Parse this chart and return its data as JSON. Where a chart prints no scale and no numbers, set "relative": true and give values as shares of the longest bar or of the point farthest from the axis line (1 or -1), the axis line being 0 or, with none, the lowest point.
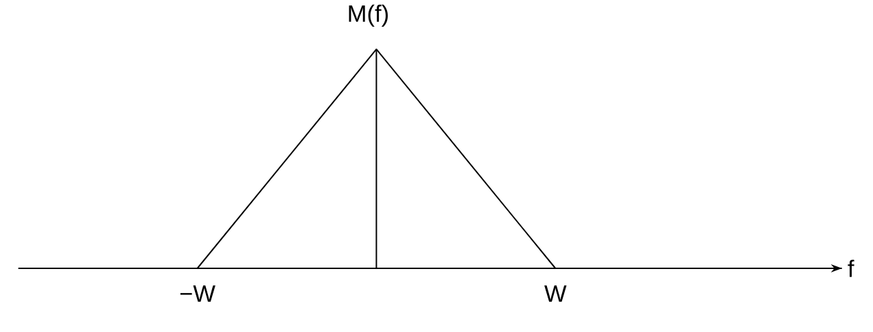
{
  "chart_data": {
    "type": "line",
    "annotations": [
      "f"
    ],
    "ylabel": "M(f)",
    "categories": [
      "−W",
      null,
      "W"
    ],
    "values": [
      0,
      1,
      0
    ],
    "relative": true,
    "color": "#000000"
  }
}
